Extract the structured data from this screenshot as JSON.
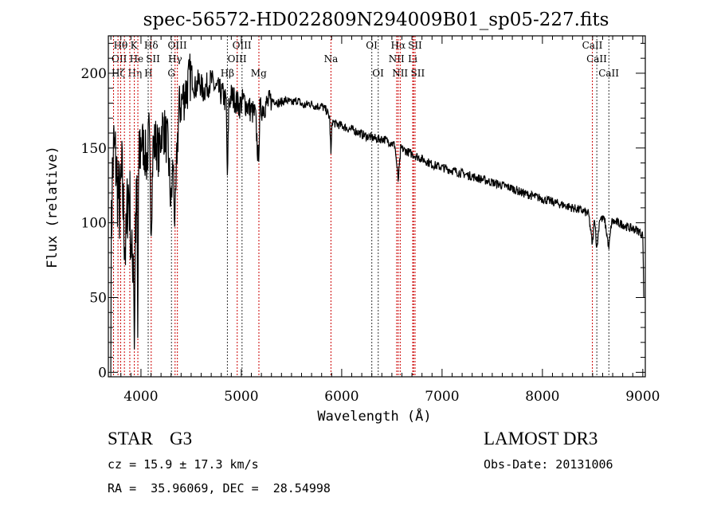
{
  "chart_data": {
    "type": "line",
    "title": "spec-56572-HD022809N294009B01_sp05-227.fits",
    "xlabel": "Wavelength (Å)",
    "ylabel": "Flux (relative)",
    "xlim": [
      3675,
      9025
    ],
    "ylim": [
      -3,
      225
    ],
    "xticks": [
      4000,
      5000,
      6000,
      7000,
      8000,
      9000
    ],
    "xtick_labels": [
      "4000",
      "5000",
      "6000",
      "7000",
      "8000",
      "9000"
    ],
    "yticks": [
      0,
      50,
      100,
      150,
      200
    ],
    "ytick_labels": [
      "0",
      "50",
      "100",
      "150",
      "200"
    ],
    "grid": false,
    "series": [
      {
        "name": "spectrum",
        "color": "#000000",
        "x": [
          3700,
          3705,
          3715,
          3730,
          3750,
          3770,
          3790,
          3810,
          3830,
          3850,
          3870,
          3890,
          3910,
          3925,
          3934,
          3945,
          3960,
          3968,
          3975,
          3990,
          4010,
          4030,
          4060,
          4080,
          4102,
          4120,
          4150,
          4180,
          4210,
          4240,
          4270,
          4300,
          4320,
          4340,
          4360,
          4380,
          4400,
          4430,
          4460,
          4500,
          4540,
          4580,
          4620,
          4660,
          4700,
          4740,
          4780,
          4820,
          4850,
          4861,
          4875,
          4900,
          4940,
          4980,
          5020,
          5060,
          5100,
          5140,
          5170,
          5185,
          5220,
          5270,
          5320,
          5380,
          5440,
          5500,
          5560,
          5620,
          5680,
          5740,
          5800,
          5850,
          5880,
          5893,
          5905,
          5940,
          6000,
          6060,
          6120,
          6180,
          6240,
          6300,
          6360,
          6420,
          6480,
          6530,
          6563,
          6590,
          6640,
          6700,
          6760,
          6820,
          6900,
          7000,
          7100,
          7200,
          7300,
          7400,
          7500,
          7600,
          7700,
          7800,
          7900,
          8000,
          8100,
          8200,
          8300,
          8400,
          8460,
          8498,
          8520,
          8542,
          8570,
          8620,
          8662,
          8690,
          8750,
          8800,
          8850,
          8900,
          8950,
          8980,
          9000,
          9005,
          9010
        ],
        "y": [
          2,
          90,
          130,
          150,
          140,
          120,
          110,
          130,
          100,
          80,
          125,
          110,
          70,
          90,
          20,
          100,
          110,
          15,
          120,
          150,
          155,
          150,
          140,
          160,
          100,
          150,
          155,
          145,
          165,
          160,
          150,
          110,
          140,
          95,
          150,
          175,
          180,
          185,
          190,
          200,
          190,
          195,
          188,
          192,
          195,
          190,
          188,
          185,
          180,
          125,
          180,
          185,
          182,
          178,
          182,
          178,
          175,
          172,
          140,
          175,
          178,
          180,
          182,
          180,
          182,
          180,
          182,
          178,
          180,
          178,
          178,
          175,
          170,
          145,
          168,
          166,
          165,
          163,
          162,
          160,
          158,
          157,
          156,
          156,
          154,
          152,
          128,
          150,
          148,
          146,
          144,
          142,
          139,
          137,
          135,
          133,
          131,
          129,
          127,
          125,
          123,
          120,
          118,
          116,
          114,
          112,
          110,
          108,
          106,
          85,
          104,
          82,
          103,
          102,
          83,
          101,
          100,
          99,
          97,
          96,
          95,
          93,
          92,
          70,
          50
        ]
      }
    ],
    "line_markers": [
      {
        "wave": 3727,
        "label": "OII",
        "row": 2,
        "color": "#cc0000"
      },
      {
        "wave": 3798,
        "label": "Hθ",
        "row": 1,
        "color": "#cc0000"
      },
      {
        "wave": 3771,
        "label": "Hζ",
        "row": 3,
        "color": "#cc0000"
      },
      {
        "wave": 3835,
        "label": "Hη",
        "row": 3,
        "color": "#cc0000"
      },
      {
        "wave": 3889,
        "label": "He",
        "row": 2,
        "color": "#cc0000"
      },
      {
        "wave": 3934,
        "label": "K",
        "row": 1,
        "color": "#cc0000"
      },
      {
        "wave": 3969,
        "label": "H",
        "row": 3,
        "color": "#cc0000"
      },
      {
        "wave": 4072,
        "label": "SII",
        "row": 2,
        "color": "#333333"
      },
      {
        "wave": 4102,
        "label": "Hδ",
        "row": 1,
        "color": "#cc0000"
      },
      {
        "wave": 4304,
        "label": "G",
        "row": 3,
        "color": "#333333"
      },
      {
        "wave": 4340,
        "label": "Hγ",
        "row": 2,
        "color": "#cc0000"
      },
      {
        "wave": 4363,
        "label": "OIII",
        "row": 1,
        "color": "#cc0000"
      },
      {
        "wave": 4861,
        "label": "Hβ",
        "row": 3,
        "color": "#333333"
      },
      {
        "wave": 4959,
        "label": "OIII",
        "row": 2,
        "color": "#cc0000"
      },
      {
        "wave": 5007,
        "label": "OIII",
        "row": 1,
        "color": "#333333"
      },
      {
        "wave": 5175,
        "label": "Mg",
        "row": 3,
        "color": "#cc0000"
      },
      {
        "wave": 5893,
        "label": "Na",
        "row": 2,
        "color": "#cc0000"
      },
      {
        "wave": 6300,
        "label": "OI",
        "row": 1,
        "color": "#333333"
      },
      {
        "wave": 6364,
        "label": "OI",
        "row": 3,
        "color": "#333333"
      },
      {
        "wave": 6548,
        "label": "NII",
        "row": 2,
        "color": "#cc0000"
      },
      {
        "wave": 6563,
        "label": "Hα",
        "row": 1,
        "color": "#cc0000"
      },
      {
        "wave": 6583,
        "label": "NII",
        "row": 3,
        "color": "#cc0000"
      },
      {
        "wave": 6708,
        "label": "Li",
        "row": 2,
        "color": "#cc0000"
      },
      {
        "wave": 6716,
        "label": "SII",
        "row": 1,
        "color": "#cc0000"
      },
      {
        "wave": 6731,
        "label": "SII",
        "row": 3,
        "color": "#cc0000"
      },
      {
        "wave": 8498,
        "label": "CaII",
        "row": 1,
        "color": "#cc0000"
      },
      {
        "wave": 8542,
        "label": "CaII",
        "row": 2,
        "color": "#333333"
      },
      {
        "wave": 8662,
        "label": "CaII",
        "row": 3,
        "color": "#333333"
      }
    ]
  },
  "info": {
    "object_type": "STAR",
    "subclass": "G3",
    "survey": "LAMOST DR3",
    "redshift": "cz = 15.9 ± 17.3 km/s",
    "obs_date": "Obs-Date: 20131006",
    "coords": "RA =  35.96069, DEC =  28.54998"
  }
}
